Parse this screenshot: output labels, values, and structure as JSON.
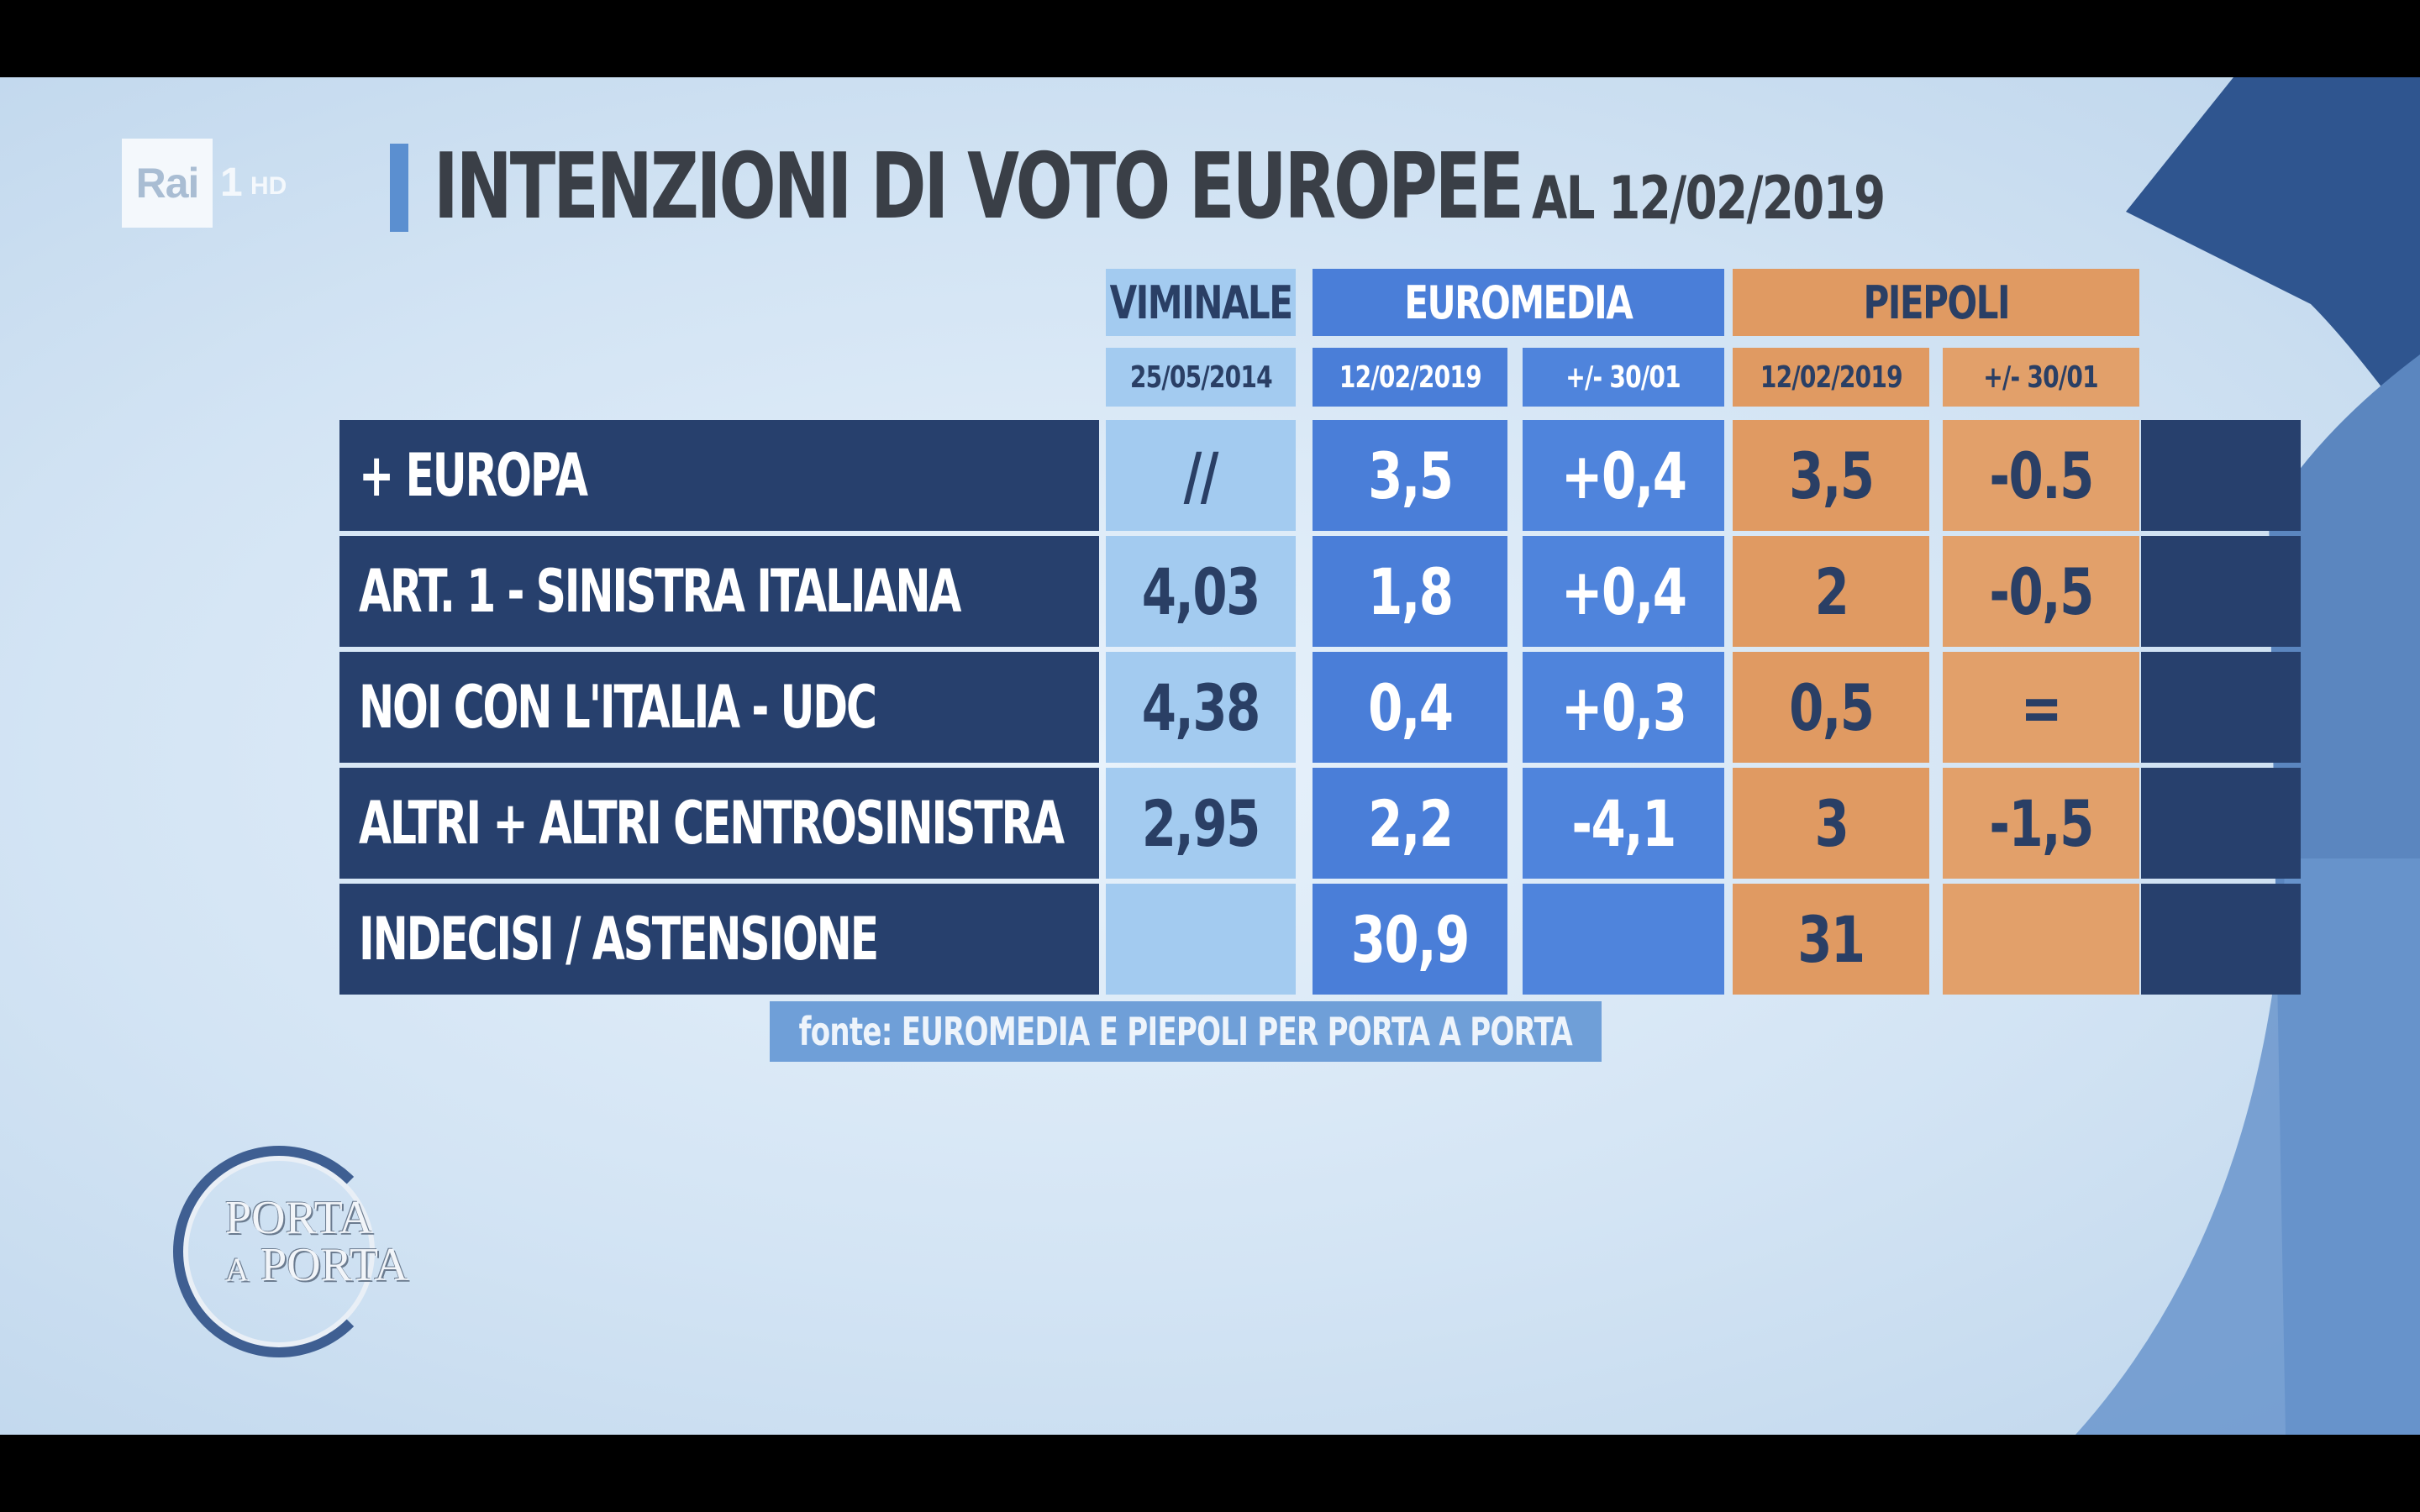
{
  "broadcaster": {
    "logo_text": "Rai",
    "channel": "1",
    "quality": "HD"
  },
  "title": {
    "main": "INTENZIONI DI VOTO EUROPEE",
    "date": "AL 12/02/2019"
  },
  "columns": {
    "viminale": {
      "label": "VIMINALE",
      "sub": "25/05/2014"
    },
    "euromedia": {
      "label": "EUROMEDIA",
      "sub1": "12/02/2019",
      "sub2": "+/- 30/01"
    },
    "piepoli": {
      "label": "PIEPOLI",
      "sub1": "12/02/2019",
      "sub2": "+/- 30/01"
    }
  },
  "rows": [
    {
      "party": "+ EUROPA",
      "viminale": "//",
      "euromedia": "3,5",
      "euromedia_diff": "+0,4",
      "piepoli": "3,5",
      "piepoli_diff": "-0.5"
    },
    {
      "party": "ART. 1 - SINISTRA ITALIANA",
      "viminale": "4,03",
      "euromedia": "1,8",
      "euromedia_diff": "+0,4",
      "piepoli": "2",
      "piepoli_diff": "-0,5"
    },
    {
      "party": "NOI CON L'ITALIA - UDC",
      "viminale": "4,38",
      "euromedia": "0,4",
      "euromedia_diff": "+0,3",
      "piepoli": "0,5",
      "piepoli_diff": "="
    },
    {
      "party": "ALTRI + ALTRI CENTROSINISTRA",
      "viminale": "2,95",
      "euromedia": "2,2",
      "euromedia_diff": "-4,1",
      "piepoli": "3",
      "piepoli_diff": "-1,5"
    },
    {
      "party": "INDECISI / ASTENSIONE",
      "viminale": "",
      "euromedia": "30,9",
      "euromedia_diff": "",
      "piepoli": "31",
      "piepoli_diff": ""
    }
  ],
  "source": "fonte: EUROMEDIA E PIEPOLI PER PORTA A PORTA",
  "show_logo": {
    "line1": "PORTA",
    "line2": "a PORTA"
  },
  "colors": {
    "background": "#d3e4f4",
    "row_dark": "#27406d",
    "viminale": "#a3cbf0",
    "euromedia": "#4a7ed8",
    "piepoli": "#e09a62"
  }
}
